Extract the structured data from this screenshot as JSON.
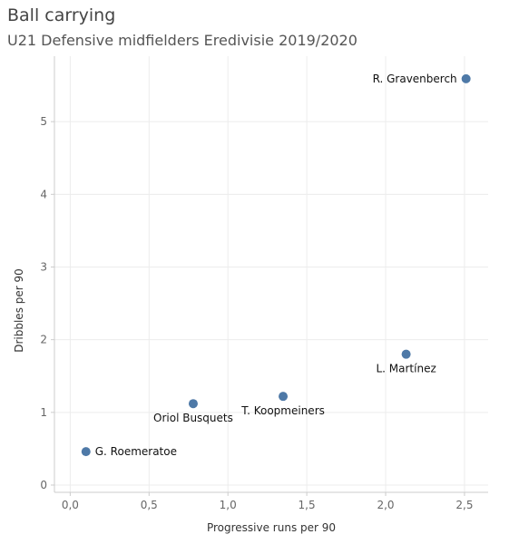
{
  "header": {
    "title": "Ball carrying",
    "subtitle": "U21 Defensive midfielders Eredivisie 2019/2020"
  },
  "colors": {
    "point": "#4e79a7",
    "grid": "#ececec",
    "axis": "#cccccc"
  },
  "chart_data": {
    "type": "scatter",
    "title": "Ball carrying",
    "subtitle": "U21 Defensive midfielders Eredivisie 2019/2020",
    "xlabel": "Progressive runs per 90",
    "ylabel": "Dribbles per 90",
    "xlim": [
      -0.1,
      2.65
    ],
    "ylim": [
      -0.1,
      5.9
    ],
    "x_ticks": [
      0,
      0.5,
      1,
      1.5,
      2,
      2.5
    ],
    "x_tick_labels": [
      "0,0",
      "0,5",
      "1,0",
      "1,5",
      "2,0",
      "2,5"
    ],
    "y_ticks": [
      0,
      1,
      2,
      3,
      4,
      5
    ],
    "y_tick_labels": [
      "0",
      "1",
      "2",
      "3",
      "4",
      "5"
    ],
    "grid": true,
    "points": [
      {
        "label": "R. Gravenberch",
        "x": 2.51,
        "y": 5.59,
        "label_pos": "left"
      },
      {
        "label": "L. Martínez",
        "x": 2.13,
        "y": 1.8,
        "label_pos": "below"
      },
      {
        "label": "T. Koopmeiners",
        "x": 1.35,
        "y": 1.22,
        "label_pos": "below"
      },
      {
        "label": "Oriol Busquets",
        "x": 0.78,
        "y": 1.12,
        "label_pos": "below"
      },
      {
        "label": "G. Roemeratoe",
        "x": 0.1,
        "y": 0.46,
        "label_pos": "right"
      }
    ]
  }
}
